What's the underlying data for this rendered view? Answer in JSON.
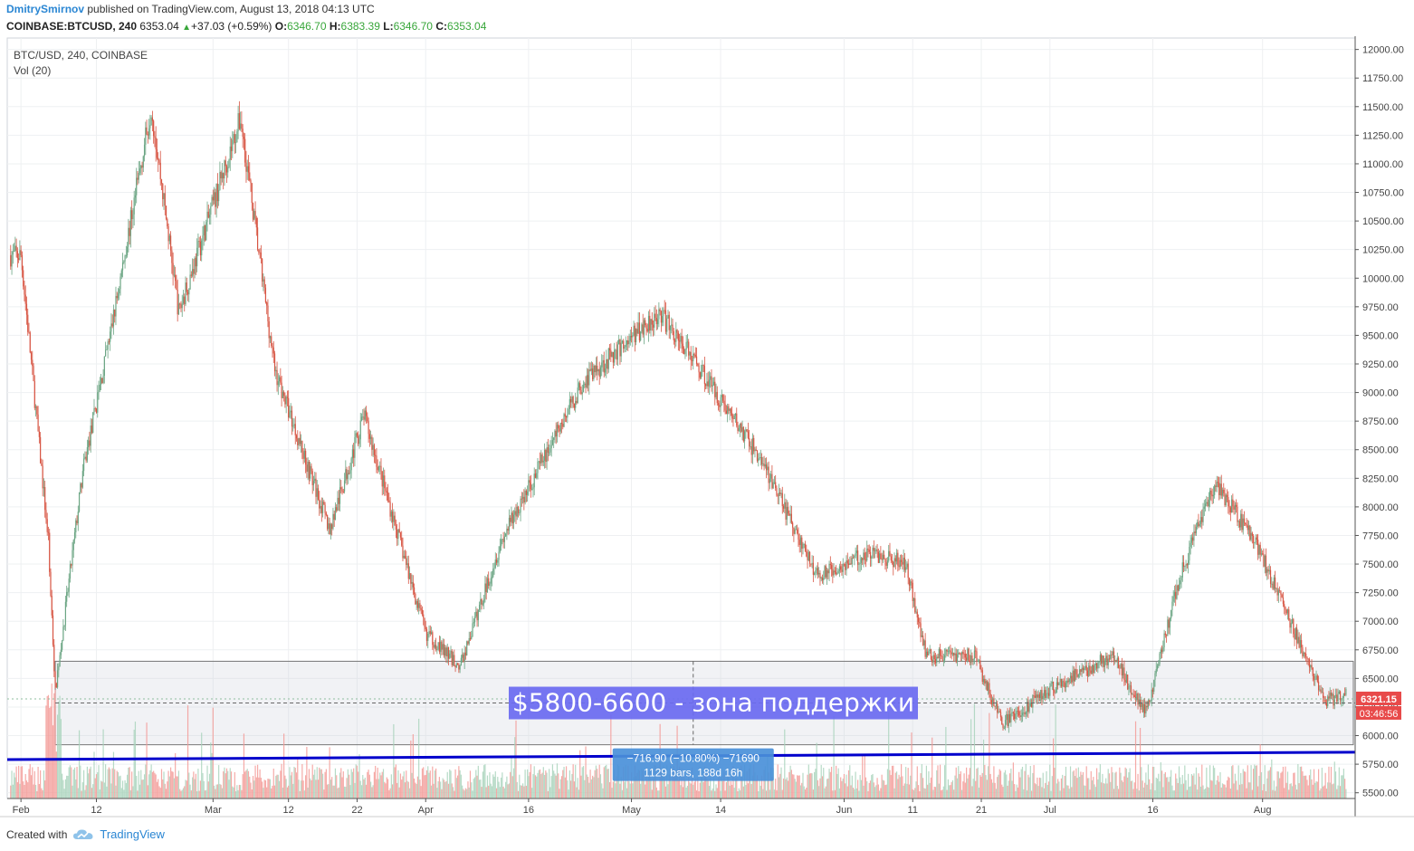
{
  "header": {
    "author": "DmitrySmirnov",
    "published": "published on TradingView.com, August 13, 2018 04:13 UTC",
    "symbol": "COINBASE:BTCUSD, 240",
    "last": "6353.04",
    "change": "+37.03 (+0.59%)",
    "o_label": "O:",
    "o_value": "6346.70",
    "h_label": "H:",
    "h_value": "6383.39",
    "l_label": "L:",
    "l_value": "6346.70",
    "c_label": "C:",
    "c_value": "6353.04"
  },
  "legend": {
    "series": "BTC/USD, 240, COINBASE",
    "volume": "Vol (20)"
  },
  "footer": {
    "created_with": "Created with",
    "brand": "TradingView"
  },
  "colors": {
    "up": "#6ba583",
    "down": "#d75442",
    "vol_up": "#a9d3bc",
    "vol_down": "#f39b98",
    "support_line": "#0000cc",
    "zone_label_bg": "#6a6af0",
    "measure_bg": "#4a90d9",
    "price_tag": "#e84a4a"
  },
  "chart_data": {
    "type": "candlestick",
    "symbol": "BTC/USD, 240, COINBASE",
    "interval": "240",
    "y_axis_ticks": [
      "12000.00",
      "11750.00",
      "11500.00",
      "11250.00",
      "11000.00",
      "10750.00",
      "10500.00",
      "10250.00",
      "10000.00",
      "9750.00",
      "9500.00",
      "9250.00",
      "9000.00",
      "8750.00",
      "8500.00",
      "8250.00",
      "8000.00",
      "7750.00",
      "7500.00",
      "7250.00",
      "7000.00",
      "6750.00",
      "6500.00",
      "6250.00",
      "6000.00",
      "5750.00",
      "5500.00"
    ],
    "ylim": [
      5450,
      12100
    ],
    "x_axis_ticks": [
      "Feb",
      "12",
      "Mar",
      "12",
      "22",
      "Apr",
      "16",
      "May",
      "14",
      "Jun",
      "11",
      "21",
      "Jul",
      "16",
      "Aug"
    ],
    "approx_weekly_closes": {
      "dates": [
        "2018-02-01",
        "2018-02-05",
        "2018-02-06",
        "2018-02-10",
        "2018-02-14",
        "2018-02-20",
        "2018-02-24",
        "2018-03-05",
        "2018-03-10",
        "2018-03-18",
        "2018-03-23",
        "2018-04-01",
        "2018-04-06",
        "2018-04-12",
        "2018-04-24",
        "2018-05-05",
        "2018-05-10",
        "2018-05-20",
        "2018-05-28",
        "2018-06-05",
        "2018-06-10",
        "2018-06-13",
        "2018-06-20",
        "2018-06-24",
        "2018-07-01",
        "2018-07-10",
        "2018-07-15",
        "2018-07-20",
        "2018-07-25",
        "2018-07-31",
        "2018-08-05",
        "2018-08-10",
        "2018-08-13"
      ],
      "close": [
        10200,
        7700,
        6400,
        8300,
        9500,
        11500,
        9700,
        11400,
        9200,
        7800,
        8800,
        6900,
        6600,
        7700,
        9100,
        9700,
        9300,
        8400,
        7400,
        7600,
        7500,
        6700,
        6700,
        6100,
        6400,
        6700,
        6200,
        7400,
        8200,
        7700,
        7000,
        6300,
        6353
      ]
    },
    "support_zone": {
      "low": 5920,
      "high": 6650,
      "label": "$5800-6600 - зона поддержки"
    },
    "support_line": {
      "start": 5790,
      "end": 5855
    },
    "dashed_price": 6321.15,
    "measure": {
      "line1": "−716.90 (−10.80%) −71690",
      "line2": "1129 bars, 188d 16h"
    },
    "price_tag": "6321.15",
    "timer_tag": "03:46:56"
  }
}
